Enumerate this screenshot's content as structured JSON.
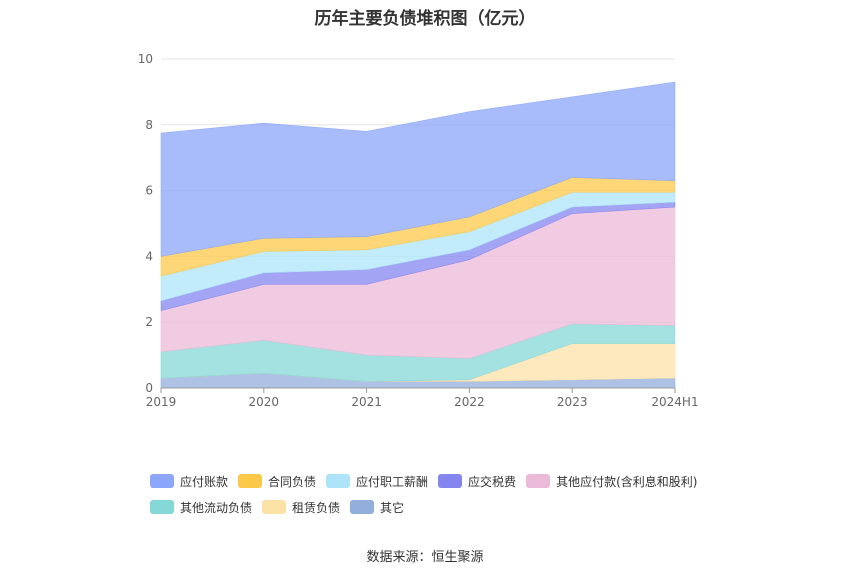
{
  "title": "历年主要负债堆积图（亿元）",
  "source": "数据来源：恒生聚源",
  "chart_data": {
    "type": "area",
    "stacked": true,
    "categories": [
      "2019",
      "2020",
      "2021",
      "2022",
      "2023",
      "2024H1"
    ],
    "ylim": [
      0,
      10
    ],
    "yticks": [
      0,
      2,
      4,
      6,
      8,
      10
    ],
    "grid": true,
    "legend_position": "bottom",
    "series": [
      {
        "name": "其它",
        "color": "#92aedb",
        "values": [
          0.3,
          0.45,
          0.2,
          0.2,
          0.25,
          0.3
        ]
      },
      {
        "name": "租赁负债",
        "color": "#fde2a8",
        "values": [
          0.0,
          0.0,
          0.0,
          0.05,
          1.1,
          1.05
        ]
      },
      {
        "name": "其他流动负债",
        "color": "#85d8d8",
        "values": [
          0.8,
          1.0,
          0.8,
          0.65,
          0.6,
          0.55
        ]
      },
      {
        "name": "其他应付款(含利息和股利)",
        "color": "#ebbad8",
        "values": [
          1.25,
          1.7,
          2.15,
          3.0,
          3.35,
          3.6
        ]
      },
      {
        "name": "应交税费",
        "color": "#8585f0",
        "values": [
          0.3,
          0.35,
          0.45,
          0.3,
          0.2,
          0.15
        ]
      },
      {
        "name": "应付职工薪酬",
        "color": "#aee4fa",
        "values": [
          0.75,
          0.65,
          0.6,
          0.55,
          0.45,
          0.3
        ]
      },
      {
        "name": "合同负债",
        "color": "#fcc84a",
        "values": [
          0.6,
          0.4,
          0.4,
          0.45,
          0.45,
          0.35
        ]
      },
      {
        "name": "应付账款",
        "color": "#8ba6fb",
        "values": [
          3.75,
          3.5,
          3.2,
          3.2,
          2.45,
          3.0
        ]
      }
    ],
    "legend_order": [
      "应付账款",
      "合同负债",
      "应付职工薪酬",
      "应交税费",
      "其他应付款(含利息和股利)",
      "其他流动负债",
      "租赁负债",
      "其它"
    ]
  }
}
